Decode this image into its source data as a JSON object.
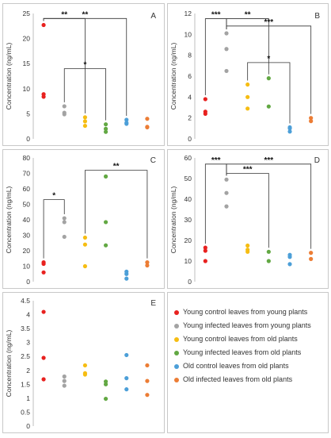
{
  "colors": {
    "young_control_young": "#e8211f",
    "young_infected_young": "#a3a3a3",
    "young_control_old": "#f6bd12",
    "young_infected_old": "#62a843",
    "old_control_old": "#4c9fd8",
    "old_infected_old": "#ec7d35"
  },
  "legend": [
    {
      "label": "Young control leaves from young plants",
      "color": "#e8211f"
    },
    {
      "label": "Young infected leaves from young plants",
      "color": "#a3a3a3"
    },
    {
      "label": "Young control leaves from old plants",
      "color": "#f6bd12"
    },
    {
      "label": "Young infected leaves from old plants",
      "color": "#62a843"
    },
    {
      "label": "Old control leaves from old plants",
      "color": "#4c9fd8"
    },
    {
      "label": "Old infected leaves from old plants",
      "color": "#ec7d35"
    }
  ],
  "chart_data": [
    {
      "type": "scatter",
      "panel": "A",
      "ylabel": "Concentration (ng/mL)",
      "ylim": [
        0,
        25
      ],
      "yticks": [
        0,
        5,
        10,
        15,
        20,
        25
      ],
      "series": [
        {
          "color": "#e8211f",
          "values": [
            22.7,
            8.9,
            8.4
          ]
        },
        {
          "color": "#a3a3a3",
          "values": [
            6.5,
            5.2,
            4.9
          ]
        },
        {
          "color": "#f6bd12",
          "values": [
            4.3,
            3.5,
            2.6
          ]
        },
        {
          "color": "#62a843",
          "values": [
            2.9,
            2.0,
            1.4
          ]
        },
        {
          "color": "#4c9fd8",
          "values": [
            3.8,
            3.2,
            3.0
          ]
        },
        {
          "color": "#ec7d35",
          "values": [
            4.0,
            2.4,
            2.3
          ]
        }
      ],
      "significance": [
        {
          "from": 0,
          "to": 2,
          "y": 24.0,
          "label": "**"
        },
        {
          "from": 0,
          "to": 4,
          "y": 24.0,
          "label": "**"
        },
        {
          "from": 1,
          "to": 3,
          "y": 14.0,
          "label": "*"
        }
      ]
    },
    {
      "type": "scatter",
      "panel": "B",
      "ylabel": "Concentration (ng/mL)",
      "ylim": [
        0,
        12
      ],
      "yticks": [
        0,
        2,
        4,
        6,
        8,
        10,
        12
      ],
      "series": [
        {
          "color": "#e8211f",
          "values": [
            3.8,
            2.6,
            2.4
          ]
        },
        {
          "color": "#a3a3a3",
          "values": [
            10.1,
            8.6,
            6.5
          ]
        },
        {
          "color": "#f6bd12",
          "values": [
            5.2,
            4.0,
            2.9
          ]
        },
        {
          "color": "#62a843",
          "values": [
            5.8,
            3.1
          ]
        },
        {
          "color": "#4c9fd8",
          "values": [
            1.1,
            1.0,
            0.7
          ]
        },
        {
          "color": "#ec7d35",
          "values": [
            2.0,
            1.7
          ]
        }
      ],
      "significance": [
        {
          "from": 0,
          "to": 1,
          "y": 11.5,
          "label": "***"
        },
        {
          "from": 1,
          "to": 3,
          "y": 11.5,
          "label": "**"
        },
        {
          "from": 1,
          "to": 5,
          "y": 10.8,
          "label": "***"
        },
        {
          "from": 2,
          "to": 4,
          "y": 7.3,
          "label": "*"
        }
      ]
    },
    {
      "type": "scatter",
      "panel": "C",
      "ylabel": "Concentration (ng/mL)",
      "ylim": [
        0,
        80
      ],
      "yticks": [
        0,
        10,
        20,
        30,
        40,
        50,
        60,
        70,
        80
      ],
      "series": [
        {
          "color": "#e8211f",
          "values": [
            12.5,
            11.5,
            6.0
          ]
        },
        {
          "color": "#a3a3a3",
          "values": [
            41.0,
            38.5,
            29.0
          ]
        },
        {
          "color": "#f6bd12",
          "values": [
            28.5,
            24.0,
            10.0
          ]
        },
        {
          "color": "#62a843",
          "values": [
            68.0,
            38.5,
            23.5
          ]
        },
        {
          "color": "#4c9fd8",
          "values": [
            6.5,
            5.0,
            2.0
          ]
        },
        {
          "color": "#ec7d35",
          "values": [
            12.5,
            10.5
          ]
        }
      ],
      "significance": [
        {
          "from": 0,
          "to": 1,
          "y": 53.0,
          "label": "*"
        },
        {
          "from": 2,
          "to": 5,
          "y": 72.0,
          "label": "**"
        }
      ]
    },
    {
      "type": "scatter",
      "panel": "D",
      "ylabel": "Concentration (ng/mL)",
      "ylim": [
        0,
        60
      ],
      "yticks": [
        0,
        10,
        20,
        30,
        40,
        50,
        60
      ],
      "series": [
        {
          "color": "#e8211f",
          "values": [
            16.5,
            15.0,
            10.0
          ]
        },
        {
          "color": "#a3a3a3",
          "values": [
            49.5,
            43.0,
            36.5
          ]
        },
        {
          "color": "#f6bd12",
          "values": [
            17.5,
            15.5,
            14.5
          ]
        },
        {
          "color": "#62a843",
          "values": [
            14.5,
            10.0
          ]
        },
        {
          "color": "#4c9fd8",
          "values": [
            13.0,
            12.0,
            8.5
          ]
        },
        {
          "color": "#ec7d35",
          "values": [
            14.0,
            11.0
          ]
        }
      ],
      "significance": [
        {
          "from": 0,
          "to": 1,
          "y": 57.0,
          "label": "***"
        },
        {
          "from": 1,
          "to": 5,
          "y": 57.0,
          "label": "***"
        },
        {
          "from": 1,
          "to": 3,
          "y": 52.5,
          "label": "***"
        }
      ]
    },
    {
      "type": "scatter",
      "panel": "E",
      "ylabel": "Concentration (ng/mL)",
      "ylim": [
        0,
        4.5
      ],
      "yticks": [
        0,
        0.5,
        1,
        1.5,
        2,
        2.5,
        3,
        3.5,
        4,
        4.5
      ],
      "series": [
        {
          "color": "#e8211f",
          "values": [
            4.1,
            2.45,
            1.68
          ]
        },
        {
          "color": "#a3a3a3",
          "values": [
            1.78,
            1.62,
            1.45
          ]
        },
        {
          "color": "#f6bd12",
          "values": [
            2.18,
            1.9,
            1.85
          ]
        },
        {
          "color": "#62a843",
          "values": [
            1.6,
            1.5,
            0.98
          ]
        },
        {
          "color": "#4c9fd8",
          "values": [
            2.55,
            1.72,
            1.32
          ]
        },
        {
          "color": "#ec7d35",
          "values": [
            2.18,
            1.62,
            1.12
          ]
        }
      ],
      "significance": []
    }
  ]
}
